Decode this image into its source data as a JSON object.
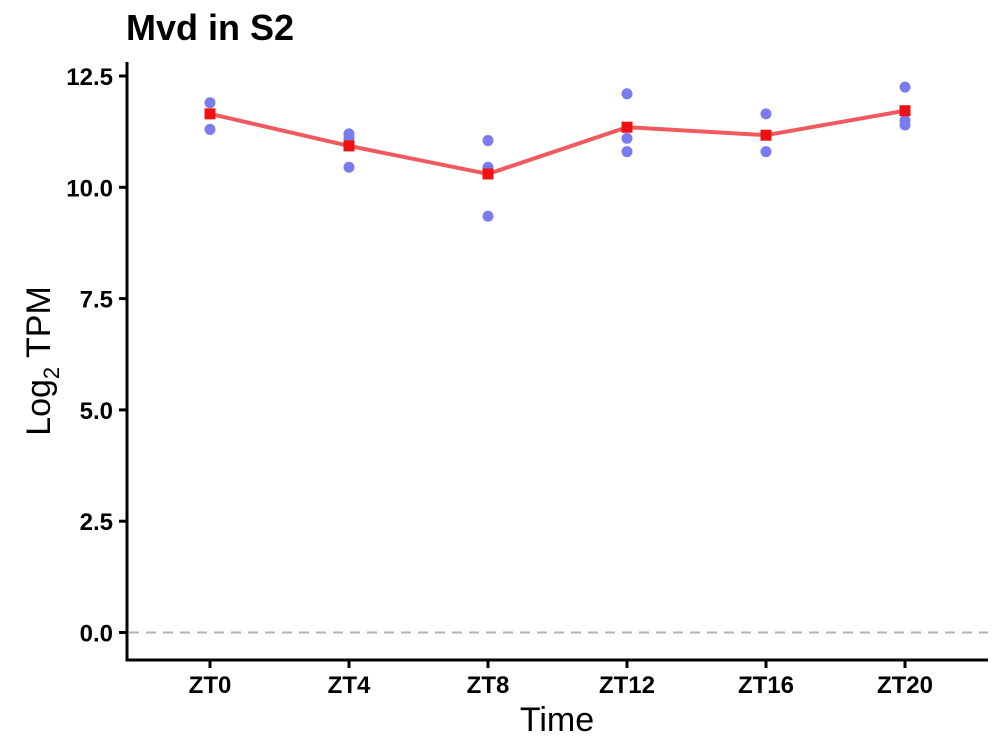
{
  "chart_data": {
    "type": "scatter",
    "title": "Mvd in S2",
    "xlabel": "Time",
    "ylabel": {
      "base": "Log",
      "subscript": "2",
      "suffix": " TPM"
    },
    "categories": [
      "ZT0",
      "ZT4",
      "ZT8",
      "ZT12",
      "ZT16",
      "ZT20"
    ],
    "yticks": [
      "0.0",
      "2.5",
      "5.0",
      "7.5",
      "10.0",
      "12.5"
    ],
    "ylim": [
      -0.6,
      12.8
    ],
    "reference_line": {
      "y": 0,
      "style": "dashed",
      "color": "#b3b3b3"
    },
    "series": [
      {
        "kind": "replicate-points",
        "color": "#7b7bf0",
        "points": [
          {
            "x": "ZT0",
            "y": 11.9
          },
          {
            "x": "ZT0",
            "y": 11.3
          },
          {
            "x": "ZT4",
            "y": 11.2
          },
          {
            "x": "ZT4",
            "y": 11.1
          },
          {
            "x": "ZT4",
            "y": 10.45
          },
          {
            "x": "ZT8",
            "y": 11.05
          },
          {
            "x": "ZT8",
            "y": 10.45
          },
          {
            "x": "ZT8",
            "y": 9.35
          },
          {
            "x": "ZT12",
            "y": 12.1
          },
          {
            "x": "ZT12",
            "y": 11.1
          },
          {
            "x": "ZT12",
            "y": 10.8
          },
          {
            "x": "ZT16",
            "y": 11.65
          },
          {
            "x": "ZT16",
            "y": 10.8
          },
          {
            "x": "ZT20",
            "y": 12.25
          },
          {
            "x": "ZT20",
            "y": 11.5
          },
          {
            "x": "ZT20",
            "y": 11.4
          }
        ]
      },
      {
        "kind": "mean-line",
        "line_color": "#f05a5e",
        "marker_color": "#ee1111",
        "values": [
          11.65,
          10.93,
          10.3,
          11.35,
          11.17,
          11.72
        ]
      }
    ],
    "grid": false,
    "legend": "none"
  }
}
